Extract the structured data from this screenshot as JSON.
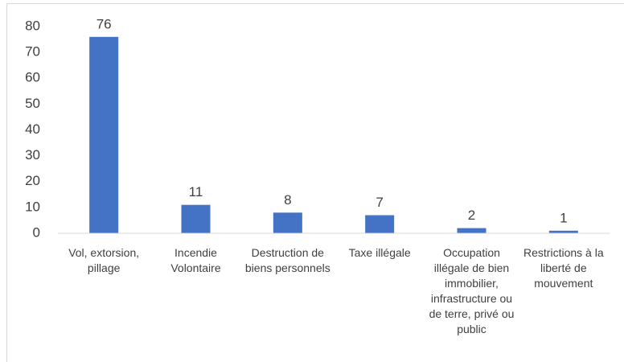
{
  "chart_data": {
    "type": "bar",
    "categories": [
      "Vol, extorsion, pillage",
      "Incendie Volontaire",
      "Destruction de biens personnels",
      "Taxe illégale",
      "Occupation illégale de bien immobilier, infrastructure ou de terre, privé ou public",
      "Restrictions à la liberté de mouvement"
    ],
    "values": [
      76,
      11,
      8,
      7,
      2,
      1
    ],
    "color": "#4472c4",
    "ylim": [
      0,
      80
    ],
    "yticks": [
      0,
      10,
      20,
      30,
      40,
      50,
      60,
      70,
      80
    ],
    "grid": false
  }
}
